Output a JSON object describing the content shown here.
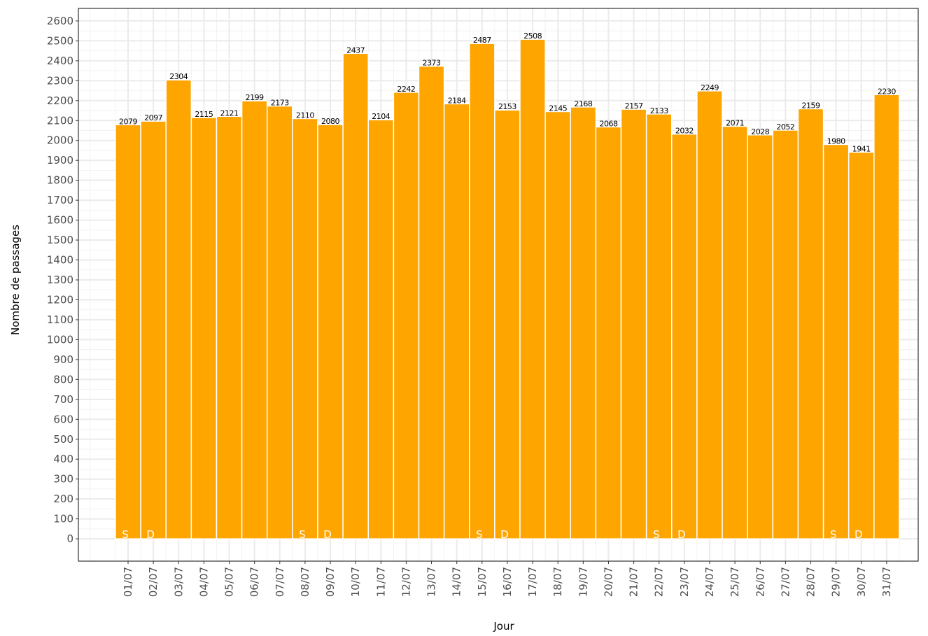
{
  "chart_data": {
    "type": "bar",
    "x_label": "Jour",
    "y_label": "Nombre de passages",
    "categories": [
      "01/07",
      "02/07",
      "03/07",
      "04/07",
      "05/07",
      "06/07",
      "07/07",
      "08/07",
      "09/07",
      "10/07",
      "11/07",
      "12/07",
      "13/07",
      "14/07",
      "15/07",
      "16/07",
      "17/07",
      "18/07",
      "19/07",
      "20/07",
      "21/07",
      "22/07",
      "23/07",
      "24/07",
      "25/07",
      "26/07",
      "27/07",
      "28/07",
      "29/07",
      "30/07",
      "31/07"
    ],
    "values": [
      2079,
      2097,
      2304,
      2115,
      2121,
      2199,
      2173,
      2110,
      2080,
      2437,
      2104,
      2242,
      2373,
      2184,
      2487,
      2153,
      2508,
      2145,
      2168,
      2068,
      2157,
      2133,
      2032,
      2249,
      2071,
      2028,
      2052,
      2159,
      1980,
      1941,
      2230
    ],
    "annotations": [
      "S",
      "D",
      null,
      null,
      null,
      null,
      null,
      "S",
      "D",
      null,
      null,
      null,
      null,
      null,
      "S",
      "D",
      null,
      null,
      null,
      null,
      null,
      "S",
      "D",
      null,
      null,
      null,
      null,
      null,
      "S",
      "D",
      null
    ],
    "color": "#ffa500",
    "ylim": [
      -112,
      2663
    ],
    "yticks": [
      0,
      100,
      200,
      300,
      400,
      500,
      600,
      700,
      800,
      900,
      1000,
      1100,
      1200,
      1300,
      1400,
      1500,
      1600,
      1700,
      1800,
      1900,
      2000,
      2100,
      2200,
      2300,
      2400,
      2500,
      2600
    ],
    "grid": true
  }
}
